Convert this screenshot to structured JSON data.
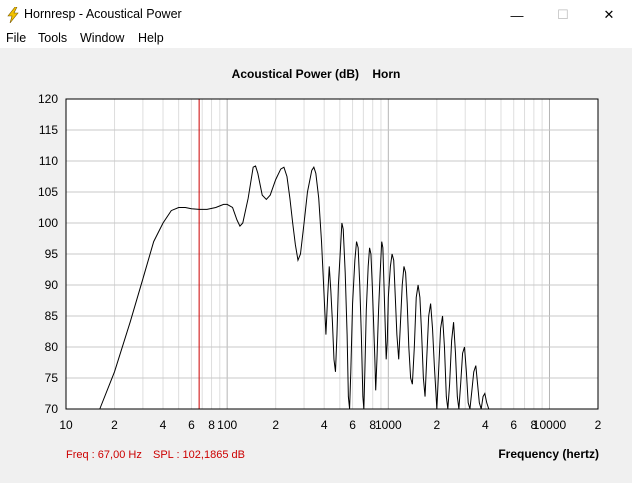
{
  "window": {
    "title": "Hornresp - Acoustical Power",
    "minimize_glyph": "—",
    "maximize_glyph": "☐",
    "close_glyph": "✕"
  },
  "menu": {
    "items": [
      {
        "label": "File"
      },
      {
        "label": "Tools"
      },
      {
        "label": "Window"
      },
      {
        "label": "Help"
      }
    ]
  },
  "status": {
    "freq": "Freq : 67,00 Hz",
    "spl": "SPL : 102,1865 dB"
  },
  "colors": {
    "curve": "#000000",
    "cursor": "#cc0000",
    "status_text": "#cc0000",
    "grid": "#c8c8c8",
    "background": "#ffffff"
  },
  "icons": [
    "lightning-icon",
    "minimize-icon",
    "maximize-icon",
    "close-icon"
  ],
  "chart_data": {
    "type": "line",
    "title": "Acoustical Power (dB)    Horn",
    "xlabel": "Frequency (hertz)",
    "ylabel": "",
    "x_scale": "log",
    "xlim": [
      10,
      20000
    ],
    "ylim": [
      70,
      120
    ],
    "grid": true,
    "y_ticks": [
      "120",
      "115",
      "110",
      "105",
      "100",
      "95",
      "90",
      "85",
      "80",
      "75",
      "70"
    ],
    "x_tick_labels": [
      {
        "x": 10,
        "label": "10"
      },
      {
        "x": 20,
        "label": "2"
      },
      {
        "x": 40,
        "label": "4"
      },
      {
        "x": 60,
        "label": "6"
      },
      {
        "x": 80,
        "label": "8"
      },
      {
        "x": 100,
        "label": "100"
      },
      {
        "x": 200,
        "label": "2"
      },
      {
        "x": 400,
        "label": "4"
      },
      {
        "x": 600,
        "label": "6"
      },
      {
        "x": 800,
        "label": "8"
      },
      {
        "x": 1000,
        "label": "1000"
      },
      {
        "x": 2000,
        "label": "2"
      },
      {
        "x": 4000,
        "label": "4"
      },
      {
        "x": 6000,
        "label": "6"
      },
      {
        "x": 8000,
        "label": "8"
      },
      {
        "x": 10000,
        "label": "10000"
      },
      {
        "x": 20000,
        "label": "2"
      }
    ],
    "cursor_x": 67,
    "series": [
      {
        "points": [
          [
            16.2,
            70
          ],
          [
            20,
            76
          ],
          [
            25,
            84
          ],
          [
            30,
            91
          ],
          [
            35,
            97
          ],
          [
            40,
            100
          ],
          [
            45,
            102
          ],
          [
            50,
            102.5
          ],
          [
            55,
            102.5
          ],
          [
            60,
            102.3
          ],
          [
            67,
            102.2
          ],
          [
            75,
            102.2
          ],
          [
            85,
            102.5
          ],
          [
            95,
            103
          ],
          [
            100,
            103
          ],
          [
            108,
            102.5
          ],
          [
            115,
            100.5
          ],
          [
            120,
            99.5
          ],
          [
            125,
            100
          ],
          [
            135,
            104
          ],
          [
            145,
            109
          ],
          [
            150,
            109.2
          ],
          [
            155,
            108
          ],
          [
            165,
            104.5
          ],
          [
            175,
            103.8
          ],
          [
            185,
            104.5
          ],
          [
            200,
            107
          ],
          [
            215,
            108.7
          ],
          [
            225,
            109
          ],
          [
            235,
            107.5
          ],
          [
            245,
            104
          ],
          [
            255,
            100
          ],
          [
            265,
            96.5
          ],
          [
            275,
            94
          ],
          [
            285,
            95
          ],
          [
            300,
            100
          ],
          [
            315,
            105
          ],
          [
            335,
            108.5
          ],
          [
            345,
            109
          ],
          [
            355,
            108
          ],
          [
            370,
            104
          ],
          [
            385,
            97
          ],
          [
            395,
            91
          ],
          [
            410,
            82
          ],
          [
            420,
            88
          ],
          [
            430,
            93
          ],
          [
            440,
            89
          ],
          [
            450,
            84
          ],
          [
            460,
            78
          ],
          [
            470,
            76
          ],
          [
            480,
            82
          ],
          [
            490,
            90
          ],
          [
            505,
            96
          ],
          [
            515,
            100
          ],
          [
            525,
            99
          ],
          [
            540,
            92
          ],
          [
            555,
            82
          ],
          [
            565,
            72
          ],
          [
            575,
            70
          ],
          [
            585,
            76
          ],
          [
            600,
            87
          ],
          [
            620,
            94
          ],
          [
            635,
            97
          ],
          [
            650,
            96
          ],
          [
            665,
            90
          ],
          [
            680,
            82
          ],
          [
            695,
            72
          ],
          [
            705,
            70
          ],
          [
            715,
            76
          ],
          [
            730,
            86
          ],
          [
            750,
            93
          ],
          [
            765,
            96
          ],
          [
            780,
            95
          ],
          [
            795,
            90
          ],
          [
            810,
            84
          ],
          [
            825,
            78
          ],
          [
            835,
            73
          ],
          [
            850,
            78
          ],
          [
            870,
            86
          ],
          [
            890,
            92
          ],
          [
            910,
            97
          ],
          [
            925,
            96
          ],
          [
            940,
            90
          ],
          [
            955,
            84
          ],
          [
            970,
            78
          ],
          [
            985,
            81
          ],
          [
            1000,
            88
          ],
          [
            1030,
            93
          ],
          [
            1055,
            95
          ],
          [
            1080,
            94
          ],
          [
            1105,
            88
          ],
          [
            1130,
            82
          ],
          [
            1160,
            78
          ],
          [
            1185,
            83
          ],
          [
            1220,
            90
          ],
          [
            1250,
            93
          ],
          [
            1280,
            92
          ],
          [
            1310,
            87
          ],
          [
            1340,
            80
          ],
          [
            1375,
            75
          ],
          [
            1410,
            74
          ],
          [
            1450,
            80
          ],
          [
            1490,
            88
          ],
          [
            1530,
            90
          ],
          [
            1570,
            88
          ],
          [
            1610,
            82
          ],
          [
            1650,
            75
          ],
          [
            1690,
            72
          ],
          [
            1730,
            78
          ],
          [
            1780,
            85
          ],
          [
            1830,
            87
          ],
          [
            1880,
            83
          ],
          [
            1930,
            77
          ],
          [
            1970,
            73
          ],
          [
            2000,
            70
          ],
          [
            2050,
            76
          ],
          [
            2110,
            83
          ],
          [
            2170,
            85
          ],
          [
            2230,
            80
          ],
          [
            2290,
            72
          ],
          [
            2340,
            70
          ],
          [
            2400,
            74
          ],
          [
            2470,
            81
          ],
          [
            2540,
            84
          ],
          [
            2610,
            79
          ],
          [
            2680,
            72
          ],
          [
            2740,
            70
          ],
          [
            2810,
            74
          ],
          [
            2890,
            79
          ],
          [
            2970,
            80
          ],
          [
            3050,
            76
          ],
          [
            3130,
            71
          ],
          [
            3210,
            70
          ],
          [
            3300,
            73
          ],
          [
            3390,
            76
          ],
          [
            3490,
            77
          ],
          [
            3580,
            74
          ],
          [
            3670,
            71
          ],
          [
            3770,
            70
          ],
          [
            3870,
            72
          ],
          [
            3970,
            72.5
          ],
          [
            4080,
            71
          ],
          [
            4200,
            70
          ]
        ]
      }
    ]
  }
}
